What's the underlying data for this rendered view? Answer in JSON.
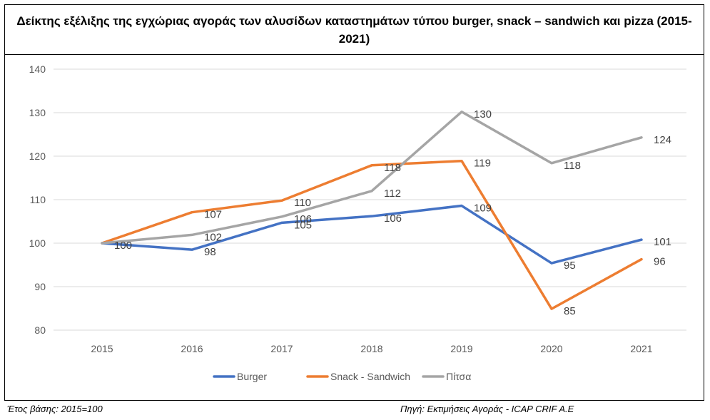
{
  "chart_data": {
    "type": "line",
    "title": "Δείκτης εξέλιξης της εγχώριας αγοράς των αλυσίδων καταστημάτων τύπου burger, snack – sandwich και pizza (2015-2021)",
    "xlabel": "",
    "ylabel": "",
    "categories": [
      "2015",
      "2016",
      "2017",
      "2018",
      "2019",
      "2020",
      "2021"
    ],
    "ylim": [
      80,
      140
    ],
    "yticks": [
      80,
      90,
      100,
      110,
      120,
      130,
      140
    ],
    "grid": true,
    "legend_position": "bottom",
    "series": [
      {
        "name": "Burger",
        "color": "#4472C4",
        "values": [
          100,
          98.5,
          104.7,
          106.2,
          108.6,
          95.4,
          100.8
        ],
        "labels": [
          "100",
          "98",
          "105",
          "106",
          "109",
          "95",
          "101"
        ]
      },
      {
        "name": "Snack - Sandwich",
        "color": "#ED7D31",
        "values": [
          100,
          107.1,
          109.8,
          117.9,
          118.9,
          84.9,
          96.3
        ],
        "labels": [
          "100",
          "107",
          "110",
          "118",
          "119",
          "85",
          "96"
        ]
      },
      {
        "name": "Πίτσα",
        "color": "#A5A5A5",
        "values": [
          100,
          101.9,
          106.1,
          112,
          130.2,
          118.4,
          124.3
        ],
        "labels": [
          "100",
          "102",
          "106",
          "112",
          "130",
          "118",
          "124"
        ]
      }
    ]
  },
  "footer": {
    "base_year": "Έτος βάσης: 2015=100",
    "source": "Πηγή: Εκτιμήσεις Αγοράς - ICAP CRIF A.E"
  }
}
